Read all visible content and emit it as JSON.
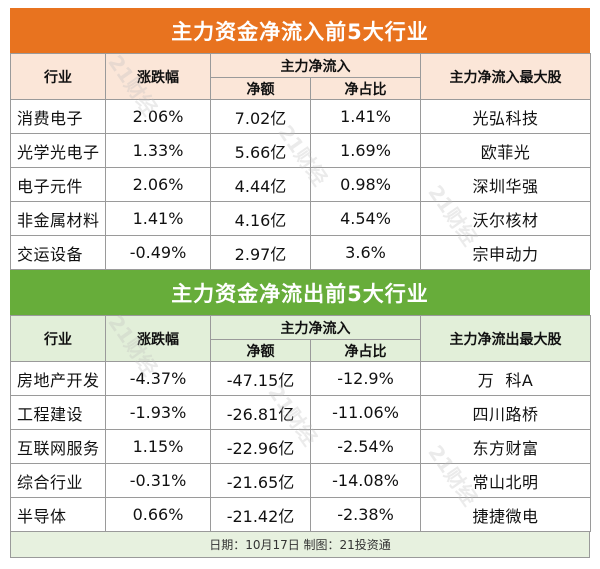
{
  "inflow": {
    "title": "主力资金净流入前5大行业",
    "headers": {
      "industry": "行业",
      "change": "涨跌幅",
      "group": "主力净流入",
      "net": "净额",
      "ratio": "净占比",
      "top_stock": "主力净流入最大股"
    },
    "rows": [
      {
        "industry": "消费电子",
        "change": "2.06%",
        "net": "7.02亿",
        "ratio": "1.41%",
        "stock": "光弘科技"
      },
      {
        "industry": "光学光电子",
        "change": "1.33%",
        "net": "5.66亿",
        "ratio": "1.69%",
        "stock": "欧菲光"
      },
      {
        "industry": "电子元件",
        "change": "2.06%",
        "net": "4.44亿",
        "ratio": "0.98%",
        "stock": "深圳华强"
      },
      {
        "industry": "非金属材料",
        "change": "1.41%",
        "net": "4.16亿",
        "ratio": "4.54%",
        "stock": "沃尔核材"
      },
      {
        "industry": "交运设备",
        "change": "-0.49%",
        "net": "2.97亿",
        "ratio": "3.6%",
        "stock": "宗申动力"
      }
    ]
  },
  "outflow": {
    "title": "主力资金净流出前5大行业",
    "headers": {
      "industry": "行业",
      "change": "涨跌幅",
      "group": "主力净流入",
      "net": "净额",
      "ratio": "净占比",
      "top_stock": "主力净流出最大股"
    },
    "rows": [
      {
        "industry": "房地产开发",
        "change": "-4.37%",
        "net": "-47.15亿",
        "ratio": "-12.9%",
        "stock": "万  科A"
      },
      {
        "industry": "工程建设",
        "change": "-1.93%",
        "net": "-26.81亿",
        "ratio": "-11.06%",
        "stock": "四川路桥"
      },
      {
        "industry": "互联网服务",
        "change": "1.15%",
        "net": "-22.96亿",
        "ratio": "-2.54%",
        "stock": "东方财富"
      },
      {
        "industry": "综合行业",
        "change": "-0.31%",
        "net": "-21.65亿",
        "ratio": "-14.08%",
        "stock": "常山北明"
      },
      {
        "industry": "半导体",
        "change": "0.66%",
        "net": "-21.42亿",
        "ratio": "-2.38%",
        "stock": "捷捷微电"
      }
    ]
  },
  "footer": "日期：10月17日  制图：21投资通",
  "watermark": "21财经",
  "colors": {
    "inflow_banner": "#e8731f",
    "outflow_banner": "#67ad3a"
  }
}
